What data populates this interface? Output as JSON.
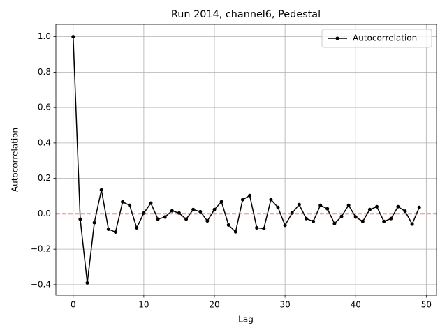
{
  "chart_data": {
    "type": "line",
    "title": "Run 2014, channel6, Pedestal",
    "x_label": "Lag",
    "y_label": "Autocorrelation",
    "x": [
      0,
      1,
      2,
      3,
      4,
      5,
      6,
      7,
      8,
      9,
      10,
      11,
      12,
      13,
      14,
      15,
      16,
      17,
      18,
      19,
      20,
      21,
      22,
      23,
      24,
      25,
      26,
      27,
      28,
      29,
      30,
      31,
      32,
      33,
      34,
      35,
      36,
      37,
      38,
      39,
      40,
      41,
      42,
      43,
      44,
      45,
      46,
      47,
      48,
      49
    ],
    "series": [
      {
        "name": "Autocorrelation",
        "color": "#000000",
        "values": [
          1.0,
          -0.03,
          -0.39,
          -0.05,
          0.135,
          -0.087,
          -0.103,
          0.067,
          0.048,
          -0.079,
          0.004,
          0.06,
          -0.03,
          -0.018,
          0.017,
          0.004,
          -0.03,
          0.024,
          0.012,
          -0.04,
          0.024,
          0.068,
          -0.063,
          -0.102,
          0.08,
          0.103,
          -0.079,
          -0.083,
          0.08,
          0.036,
          -0.065,
          0.004,
          0.052,
          -0.027,
          -0.043,
          0.048,
          0.028,
          -0.055,
          -0.015,
          0.048,
          -0.018,
          -0.043,
          0.024,
          0.04,
          -0.043,
          -0.027,
          0.04,
          0.015,
          -0.058,
          0.036
        ]
      }
    ],
    "reference_line": {
      "value": 0,
      "color": "#ff0000"
    },
    "xlim": [
      -2.45,
      51.45
    ],
    "xticks": [
      0,
      10,
      20,
      30,
      40,
      50
    ],
    "ylim": [
      -0.4595,
      1.0695
    ],
    "yticks": [
      {
        "value": -0.4,
        "label": "−0.4"
      },
      {
        "value": -0.2,
        "label": "−0.2"
      },
      {
        "value": 0,
        "label": "0.0"
      },
      {
        "value": 0.2,
        "label": "0.2"
      },
      {
        "value": 0.4,
        "label": "0.4"
      },
      {
        "value": 0.6,
        "label": "0.6"
      },
      {
        "value": 0.8,
        "label": "0.8"
      },
      {
        "value": 1.0,
        "label": "1.0"
      }
    ],
    "grid": true,
    "legend": "upper right"
  }
}
